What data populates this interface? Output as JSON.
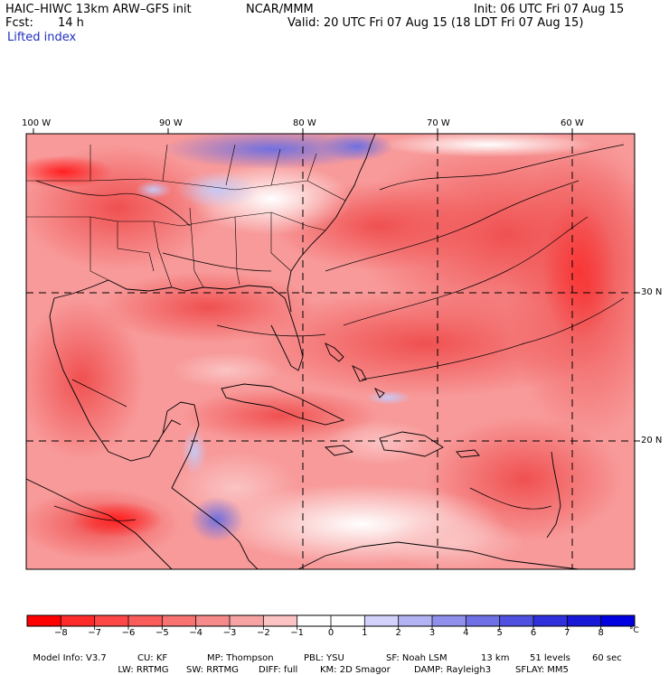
{
  "header": {
    "model": "HAIC–HIWC 13km ARW–GFS init",
    "org": "NCAR/MMM",
    "init": "Init: 06 UTC Fri 07 Aug 15",
    "fcst_label": "Fcst:",
    "fcst_value": "14 h",
    "valid": "Valid: 20 UTC Fri 07 Aug 15 (18 LDT Fri 07 Aug 15)",
    "field": "Lifted index"
  },
  "axes": {
    "lon_labels": [
      "100 W",
      "90 W",
      "80 W",
      "70 W",
      "60 W"
    ],
    "lat_labels": [
      "30 N",
      "20 N"
    ]
  },
  "colorbar": {
    "labels": [
      "−8",
      "−7",
      "−6",
      "−5",
      "−4",
      "−3",
      "−2",
      "−1",
      "0",
      "1",
      "2",
      "3",
      "4",
      "5",
      "6",
      "7",
      "8"
    ],
    "unit": "°C",
    "colors": [
      "#ff0000",
      "#ff2a2a",
      "#ff4747",
      "#fa5c5c",
      "#f87272",
      "#f68a8a",
      "#f8a3a3",
      "#fbc3c3",
      "#ffffff",
      "#ffffff",
      "#d2d2fa",
      "#b3b3f4",
      "#9090ec",
      "#7070e6",
      "#5050e0",
      "#3030dc",
      "#1818d8",
      "#0000e0"
    ]
  },
  "model_info": {
    "line1": [
      "Model Info: V3.7",
      "CU: KF",
      "MP: Thompson",
      "PBL: YSU",
      "SF: Noah LSM",
      "13 km",
      "51 levels",
      "60 sec"
    ],
    "line2": [
      "LW: RRTMG",
      "SW: RRTMG",
      "DIFF: full",
      "KM: 2D Smagor",
      "DAMP: Rayleigh3",
      "SFLAY: MM5"
    ]
  },
  "map_colors": {
    "frame": "#000000",
    "coast": "#000000",
    "grid": "#000000"
  }
}
